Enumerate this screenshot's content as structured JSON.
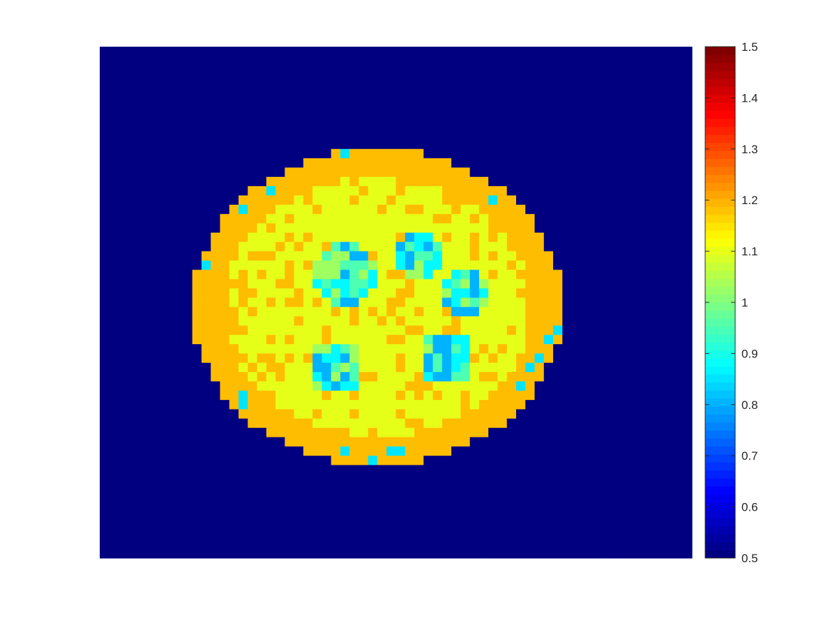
{
  "figure": {
    "background": "#ffffff"
  },
  "colormap": "jet",
  "chart_data": {
    "type": "heatmap",
    "title": "",
    "xlabel": "",
    "ylabel": "",
    "axes_visible": false,
    "grid": false,
    "legend": "none",
    "grid_shape": [
      55,
      64
    ],
    "clim": [
      0.5,
      1.5
    ],
    "background_value": 0.5,
    "colorbar": {
      "position": "right",
      "ticks": [
        0.5,
        0.6,
        0.7,
        0.8,
        0.9,
        1,
        1.1,
        1.2,
        1.3,
        1.4,
        1.5
      ],
      "tick_labels": [
        "0.5",
        "0.6",
        "0.7",
        "0.8",
        "0.9",
        "1",
        "1.1",
        "1.2",
        "1.3",
        "1.4",
        "1.5"
      ]
    },
    "data_region": {
      "shape": "disk",
      "center_cell": [
        34,
        33
      ],
      "rows": [
        11,
        45
      ],
      "cols": [
        10,
        50
      ],
      "outer_ring_value": 1.19,
      "inner_field_value": 1.1,
      "spot_values": [
        0.8,
        0.87,
        0.95,
        1.03
      ]
    },
    "notes_from_image": "Single heatmap: dark background (value 0.5) with a roughly circular region of values ~0.8–1.2; colorbar ticks 0.5 to 1.5."
  }
}
